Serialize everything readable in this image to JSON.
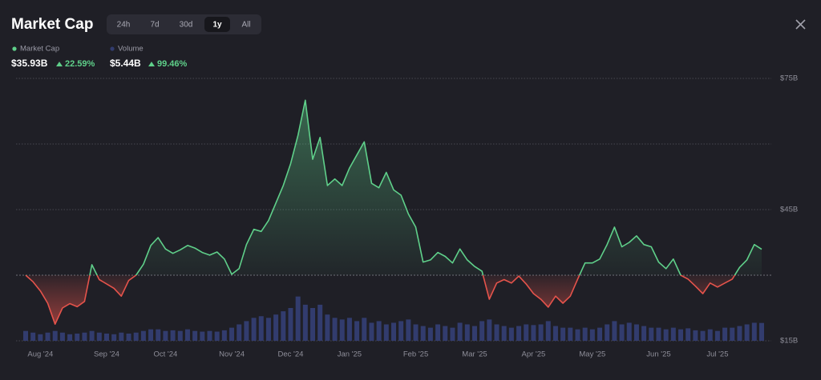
{
  "header": {
    "title": "Market Cap",
    "tabs": [
      "24h",
      "7d",
      "30d",
      "1y",
      "All"
    ],
    "active_tab": 3
  },
  "chart_data": {
    "type": "line",
    "categories": [
      null,
      null,
      "Aug '24",
      null,
      null,
      null,
      null,
      null,
      null,
      null,
      null,
      "Sep '24",
      null,
      null,
      null,
      null,
      null,
      null,
      null,
      "Oct '24",
      null,
      null,
      null,
      null,
      null,
      null,
      null,
      null,
      "Nov '24",
      null,
      null,
      null,
      null,
      null,
      null,
      null,
      "Dec '24",
      null,
      null,
      null,
      null,
      null,
      null,
      null,
      "Jan '25",
      null,
      null,
      null,
      null,
      null,
      null,
      null,
      null,
      "Feb '25",
      null,
      null,
      null,
      null,
      null,
      null,
      null,
      "Mar '25",
      null,
      null,
      null,
      null,
      null,
      null,
      null,
      "Apr '25",
      null,
      null,
      null,
      null,
      null,
      null,
      null,
      "May '25",
      null,
      null,
      null,
      null,
      null,
      null,
      null,
      null,
      "Jun '25",
      null,
      null,
      null,
      null,
      null,
      null,
      null,
      "Jul '25",
      null,
      null,
      null,
      null,
      null,
      null
    ],
    "series": [
      {
        "name": "Market Cap",
        "color": "#5fd08a",
        "color_down": "#e5534b",
        "legend_value": "$35.93B",
        "legend_change": "22.59%",
        "values": [
          30.0,
          28.5,
          26.4,
          23.6,
          18.8,
          22.5,
          23.5,
          22.8,
          24.0,
          32.4,
          29.0,
          28.0,
          27.0,
          25.2,
          28.8,
          30.0,
          32.5,
          36.8,
          38.6,
          36.0,
          35.0,
          35.8,
          36.8,
          36.2,
          35.2,
          34.6,
          35.3,
          33.7,
          30.2,
          31.5,
          37.0,
          40.5,
          40.0,
          42.5,
          46.5,
          50.5,
          55.5,
          62.0,
          70.0,
          56.5,
          61.5,
          50.5,
          52.0,
          50.5,
          54.5,
          57.5,
          60.5,
          51.0,
          50.0,
          53.5,
          49.5,
          48.3,
          44.0,
          41.0,
          33.0,
          33.5,
          35.2,
          34.3,
          32.8,
          36.0,
          33.5,
          32.0,
          30.9,
          24.5,
          28.2,
          29.0,
          28.2,
          29.8,
          28.0,
          25.8,
          24.5,
          22.7,
          25.2,
          23.6,
          25.2,
          29.1,
          32.8,
          32.8,
          33.7,
          37.0,
          41.0,
          36.5,
          37.5,
          39.0,
          37.0,
          36.5,
          33.0,
          31.5,
          33.7,
          30.0,
          29.1,
          27.5,
          25.8,
          28.2,
          27.3,
          28.2,
          29.1,
          31.8,
          33.5,
          37.0,
          35.93
        ]
      },
      {
        "name": "Volume",
        "type": "bar",
        "axis": "y2",
        "color": "#323c6e",
        "legend_value": "$5.44B",
        "legend_change": "99.46%",
        "values": [
          3,
          2.5,
          2,
          2.5,
          3,
          2.5,
          2,
          2.2,
          2.5,
          3,
          2.5,
          2.2,
          2,
          2.5,
          2.2,
          2.5,
          3,
          3.5,
          3.5,
          3,
          3.2,
          3,
          3.5,
          3,
          2.8,
          3,
          2.8,
          3.2,
          4,
          5,
          6,
          7,
          7.5,
          7,
          8,
          9,
          10,
          13.5,
          11,
          10,
          11,
          8,
          7,
          6.5,
          7,
          6,
          7,
          5.5,
          6,
          5,
          5.5,
          6,
          6.5,
          5,
          4.5,
          4,
          5,
          4.5,
          4,
          5.5,
          5,
          4.5,
          6,
          6.5,
          5,
          4.5,
          4,
          4.5,
          5,
          4.8,
          5,
          6,
          4.5,
          4,
          4,
          3.5,
          4,
          3.5,
          4,
          5,
          6,
          5,
          5.5,
          5,
          4.5,
          4,
          4,
          3.5,
          4,
          3.5,
          3.8,
          3.2,
          3,
          3.5,
          3,
          4,
          4,
          4.5,
          5,
          5.5,
          5.44
        ]
      }
    ],
    "ylim": [
      15,
      75
    ],
    "yticks": [
      {
        "value": 15,
        "label": "$15B"
      },
      {
        "value": 45,
        "label": "$45B"
      },
      {
        "value": 75,
        "label": "$75B"
      }
    ],
    "minor_grid": [
      60
    ],
    "baseline": 30,
    "y2lim": [
      0,
      80
    ],
    "grid": true
  }
}
